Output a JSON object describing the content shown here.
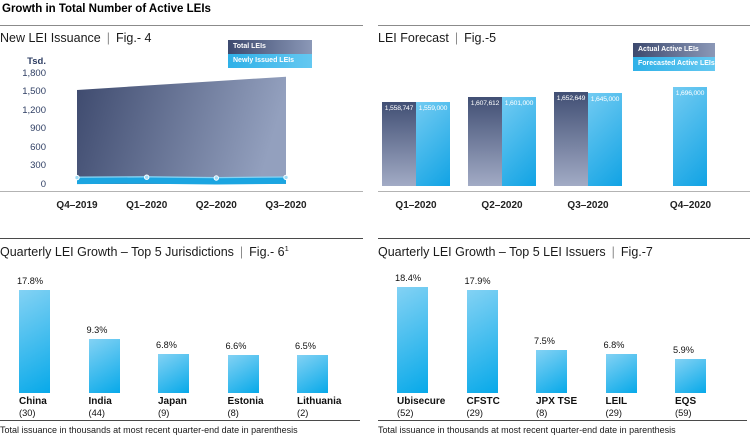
{
  "page": {
    "header": "Growth in Total Number of Active LEIs",
    "background": "#ffffff"
  },
  "colors": {
    "accent_blue": "#29abe2",
    "dark_navy": "#414f74",
    "dark_navy_light": "#a2abc5",
    "light_blue_deep": "#11a3e4",
    "light_blue_pale": "#7dd0f4",
    "axis_text": "#2e3e63",
    "axis_line": "#b3b3b3",
    "rule_dark": "#4a4a4a",
    "body_text": "#1a1a1a"
  },
  "chart_data": [
    {
      "id": "fig4",
      "type": "area",
      "title": "New LEI Issuance",
      "fig_label": "Fig.- 4",
      "y_axis_unit": "Tsd.",
      "y_ticks": [
        "1,800",
        "1,500",
        "1,200",
        "900",
        "600",
        "300",
        "0"
      ],
      "ylim": [
        0,
        1800
      ],
      "grid": false,
      "legend_position": "top-right",
      "categories": [
        "Q4–2019",
        "Q1–2020",
        "Q2–2020",
        "Q3–2020"
      ],
      "series": [
        {
          "name": "Total LEIs",
          "style": "dark-area",
          "values": [
            1525,
            1597,
            1668,
            1740
          ]
        },
        {
          "name": "Newly Issued LEIs",
          "style": "blue-line",
          "values": [
            55,
            62,
            48,
            58
          ]
        }
      ],
      "units_note": "values in thousands (Tsd.), estimated from plot"
    },
    {
      "id": "fig5",
      "type": "bar",
      "title": "LEI Forecast",
      "fig_label": "Fig.-5",
      "grid": false,
      "legend_position": "top-right",
      "ylim": [
        800000,
        1750000
      ],
      "baseline_truncated": true,
      "categories": [
        "Q1–2020",
        "Q2–2020",
        "Q3–2020",
        "Q4–2020"
      ],
      "series": [
        {
          "name": "Actual Active LEIs",
          "style": "dark",
          "values": [
            1558747,
            1607612,
            1652649,
            null
          ],
          "value_labels": [
            "1,558,747",
            "1,607,612",
            "1,652,649",
            null
          ]
        },
        {
          "name": "Forecasted Active LEIs",
          "style": "light",
          "values": [
            1559000,
            1601000,
            1645000,
            1696000
          ],
          "value_labels": [
            "1,559,000",
            "1,601,000",
            "1,645,000",
            "1,696,000"
          ]
        }
      ]
    },
    {
      "id": "fig6",
      "type": "bar",
      "title": "Quarterly LEI Growth – Top 5 Jurisdictions",
      "fig_label": "Fig.- 6",
      "fig_superscript": "1",
      "grid": false,
      "ylim": [
        0,
        20
      ],
      "categories": [
        "China",
        "India",
        "Japan",
        "Estonia",
        "Lithuania"
      ],
      "category_sublabels": [
        "(30)",
        "(44)",
        "(9)",
        "(8)",
        "(2)"
      ],
      "values": [
        17.8,
        9.3,
        6.8,
        6.6,
        6.5
      ],
      "value_labels": [
        "17.8%",
        "9.3%",
        "6.8%",
        "6.6%",
        "6.5%"
      ],
      "footnote": "Total issuance in thousands at most recent quarter-end date in parenthesis"
    },
    {
      "id": "fig7",
      "type": "bar",
      "title": "Quarterly LEI Growth – Top 5 LEI Issuers",
      "fig_label": "Fig.-7",
      "grid": false,
      "ylim": [
        0,
        20
      ],
      "categories": [
        "Ubisecure",
        "CFSTC",
        "JPX TSE",
        "LEIL",
        "EQS"
      ],
      "category_sublabels": [
        "(52)",
        "(29)",
        "(8)",
        "(29)",
        "(59)"
      ],
      "values": [
        18.4,
        17.9,
        7.5,
        6.8,
        5.9
      ],
      "value_labels": [
        "18.4%",
        "17.9%",
        "7.5%",
        "6.8%",
        "5.9%"
      ],
      "footnote": "Total issuance in thousands at most recent quarter-end date in parenthesis"
    }
  ]
}
